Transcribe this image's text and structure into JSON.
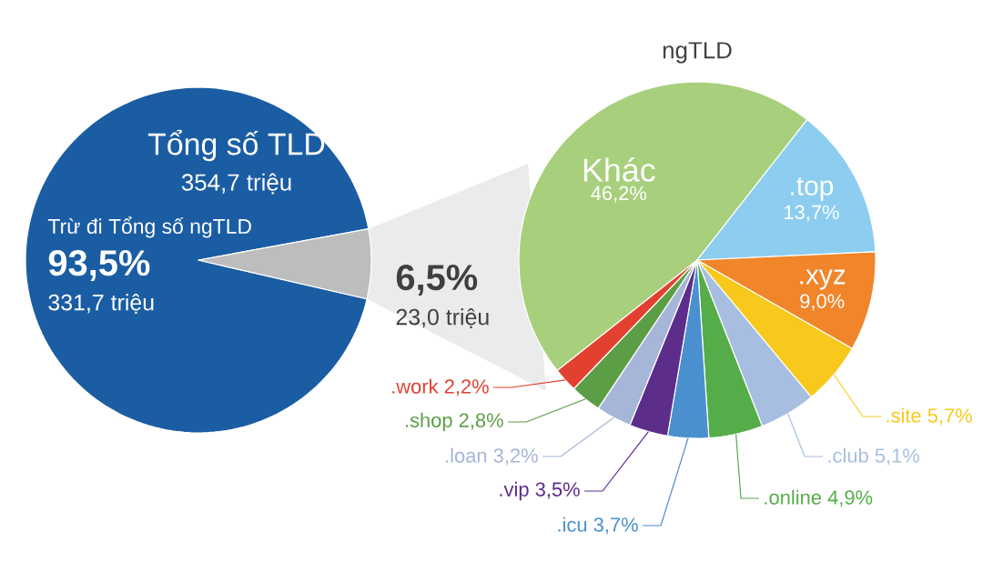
{
  "chart_data": [
    {
      "type": "pie",
      "title": "Tổng số TLD",
      "subtitle": "354,7 triệu",
      "categories": [
        "Trừ đi Tổng số ngTLD",
        null
      ],
      "values": [
        93.5,
        6.5
      ],
      "colors": [
        "#1b5da3",
        "#bdbdbd"
      ],
      "value_labels": [
        "93,5%",
        "6,5%"
      ],
      "annotations": [
        "331,7 triệu",
        "23,0 triệu"
      ]
    },
    {
      "type": "pie",
      "title": "ngTLD",
      "categories": [
        "Khác",
        ".top",
        ".xyz",
        ".site",
        ".club",
        ".online",
        ".icu",
        ".vip",
        ".loan",
        ".shop",
        ".work"
      ],
      "values": [
        46.2,
        13.7,
        9.0,
        5.7,
        5.1,
        4.9,
        3.7,
        3.5,
        3.2,
        2.8,
        2.2
      ],
      "colors": [
        "#a8cf7c",
        "#8ccdf0",
        "#f0852a",
        "#f8c91c",
        "#a7bee0",
        "#55ad49",
        "#4a90cf",
        "#5d2d8c",
        "#a5b6d9",
        "#5c9e45",
        "#e2412f"
      ],
      "value_labels": [
        "46,2%",
        "13,7%",
        "9,0%",
        "5,7%",
        "5,1%",
        "4,9%",
        "3,7%",
        "3,5%",
        "3,2%",
        "2,8%",
        "2,2%"
      ]
    }
  ]
}
